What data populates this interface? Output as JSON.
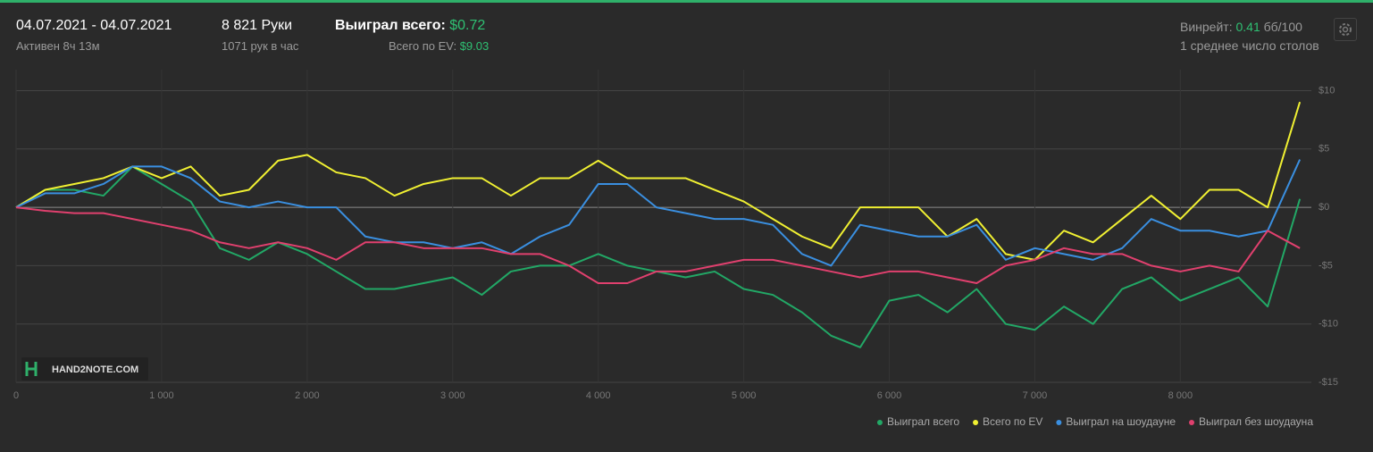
{
  "header": {
    "date_range": "04.07.2021 - 04.07.2021",
    "active": "Активен 8ч 13м",
    "hands": "8 821 Руки",
    "hands_per_hour": "1071 рук в час",
    "won_label": "Выиграл всего:",
    "won_value": "$0.72",
    "ev_label": "Всего по EV:",
    "ev_value": "$9.03",
    "winrate_label": "Винрейт:",
    "winrate_value": "0.41",
    "winrate_unit": "бб/100",
    "tables": "1 среднее число столов"
  },
  "chart_data": {
    "type": "line",
    "logo": "HAND2NOTE.COM",
    "x": [
      0,
      200,
      400,
      600,
      800,
      1000,
      1200,
      1400,
      1600,
      1800,
      2000,
      2200,
      2400,
      2600,
      2800,
      3000,
      3200,
      3400,
      3600,
      3800,
      4000,
      4200,
      4400,
      4600,
      4800,
      5000,
      5200,
      5400,
      5600,
      5800,
      6000,
      6200,
      6400,
      6600,
      6800,
      7000,
      7200,
      7400,
      7600,
      7800,
      8000,
      8200,
      8400,
      8600,
      8821
    ],
    "xlim": [
      0,
      8900
    ],
    "xticks": [
      0,
      {
        "value": 1000,
        "label": "1 000"
      },
      {
        "value": 2000,
        "label": "2 000"
      },
      {
        "value": 3000,
        "label": "3 000"
      },
      {
        "value": 4000,
        "label": "4 000"
      },
      {
        "value": 5000,
        "label": "5 000"
      },
      {
        "value": 6000,
        "label": "6 000"
      },
      {
        "value": 7000,
        "label": "7 000"
      },
      {
        "value": 8000,
        "label": "8 000"
      }
    ],
    "ylim": [
      -15,
      11.8
    ],
    "yticks": [
      {
        "value": 10,
        "label": "$10"
      },
      {
        "value": 5,
        "label": "$5"
      },
      {
        "value": 0,
        "label": "$0"
      },
      {
        "value": -5,
        "label": "-$5"
      },
      {
        "value": -10,
        "label": "-$10"
      },
      {
        "value": -15,
        "label": "-$15"
      }
    ],
    "grid": true,
    "legend": "bottom-right",
    "series": [
      {
        "name": "Выиграл всего",
        "color": "#22a866",
        "values": [
          0,
          1.5,
          1.5,
          1,
          3.5,
          2,
          0.5,
          -3.5,
          -4.5,
          -3,
          -4,
          -5.5,
          -7,
          -7,
          -6.5,
          -6,
          -7.5,
          -5.5,
          -5,
          -5,
          -4,
          -5,
          -5.5,
          -6,
          -5.5,
          -7,
          -7.5,
          -9,
          -11,
          -12,
          -8,
          -7.5,
          -9,
          -7,
          -10,
          -10.5,
          -8.5,
          -10,
          -7,
          -6,
          -8,
          -7,
          -6,
          -8.5,
          0.72
        ]
      },
      {
        "name": "Всего по EV",
        "color": "#f0f032",
        "values": [
          0,
          1.5,
          2,
          2.5,
          3.5,
          2.5,
          3.5,
          1,
          1.5,
          4,
          4.5,
          3,
          2.5,
          1,
          2,
          2.5,
          2.5,
          1,
          2.5,
          2.5,
          4,
          2.5,
          2.5,
          2.5,
          1.5,
          0.5,
          -1,
          -2.5,
          -3.5,
          0,
          0,
          0,
          -2.5,
          -1,
          -4,
          -4.5,
          -2,
          -3,
          -1,
          1,
          -1,
          1.5,
          1.5,
          0,
          9.03
        ]
      },
      {
        "name": "Выиграл на шоудауне",
        "color": "#3a8fe0",
        "values": [
          0,
          1.2,
          1.2,
          2,
          3.5,
          3.5,
          2.5,
          0.5,
          0,
          0.5,
          0,
          0,
          -2.5,
          -3,
          -3,
          -3.5,
          -3,
          -4,
          -2.5,
          -1.5,
          2,
          2,
          0,
          -0.5,
          -1,
          -1,
          -1.5,
          -4,
          -5,
          -1.5,
          -2,
          -2.5,
          -2.5,
          -1.5,
          -4.5,
          -3.5,
          -4,
          -4.5,
          -3.5,
          -1,
          -2,
          -2,
          -2.5,
          -2,
          4.1
        ]
      },
      {
        "name": "Выиграл без шоудауна",
        "color": "#e0406e",
        "values": [
          0,
          -0.3,
          -0.5,
          -0.5,
          -1,
          -1.5,
          -2,
          -3,
          -3.5,
          -3,
          -3.5,
          -4.5,
          -3,
          -3,
          -3.5,
          -3.5,
          -3.5,
          -4,
          -4,
          -5,
          -6.5,
          -6.5,
          -5.5,
          -5.5,
          -5,
          -4.5,
          -4.5,
          -5,
          -5.5,
          -6,
          -5.5,
          -5.5,
          -6,
          -6.5,
          -5,
          -4.5,
          -3.5,
          -4,
          -4,
          -5,
          -5.5,
          -5,
          -5.5,
          -2,
          -3.5
        ]
      }
    ]
  }
}
